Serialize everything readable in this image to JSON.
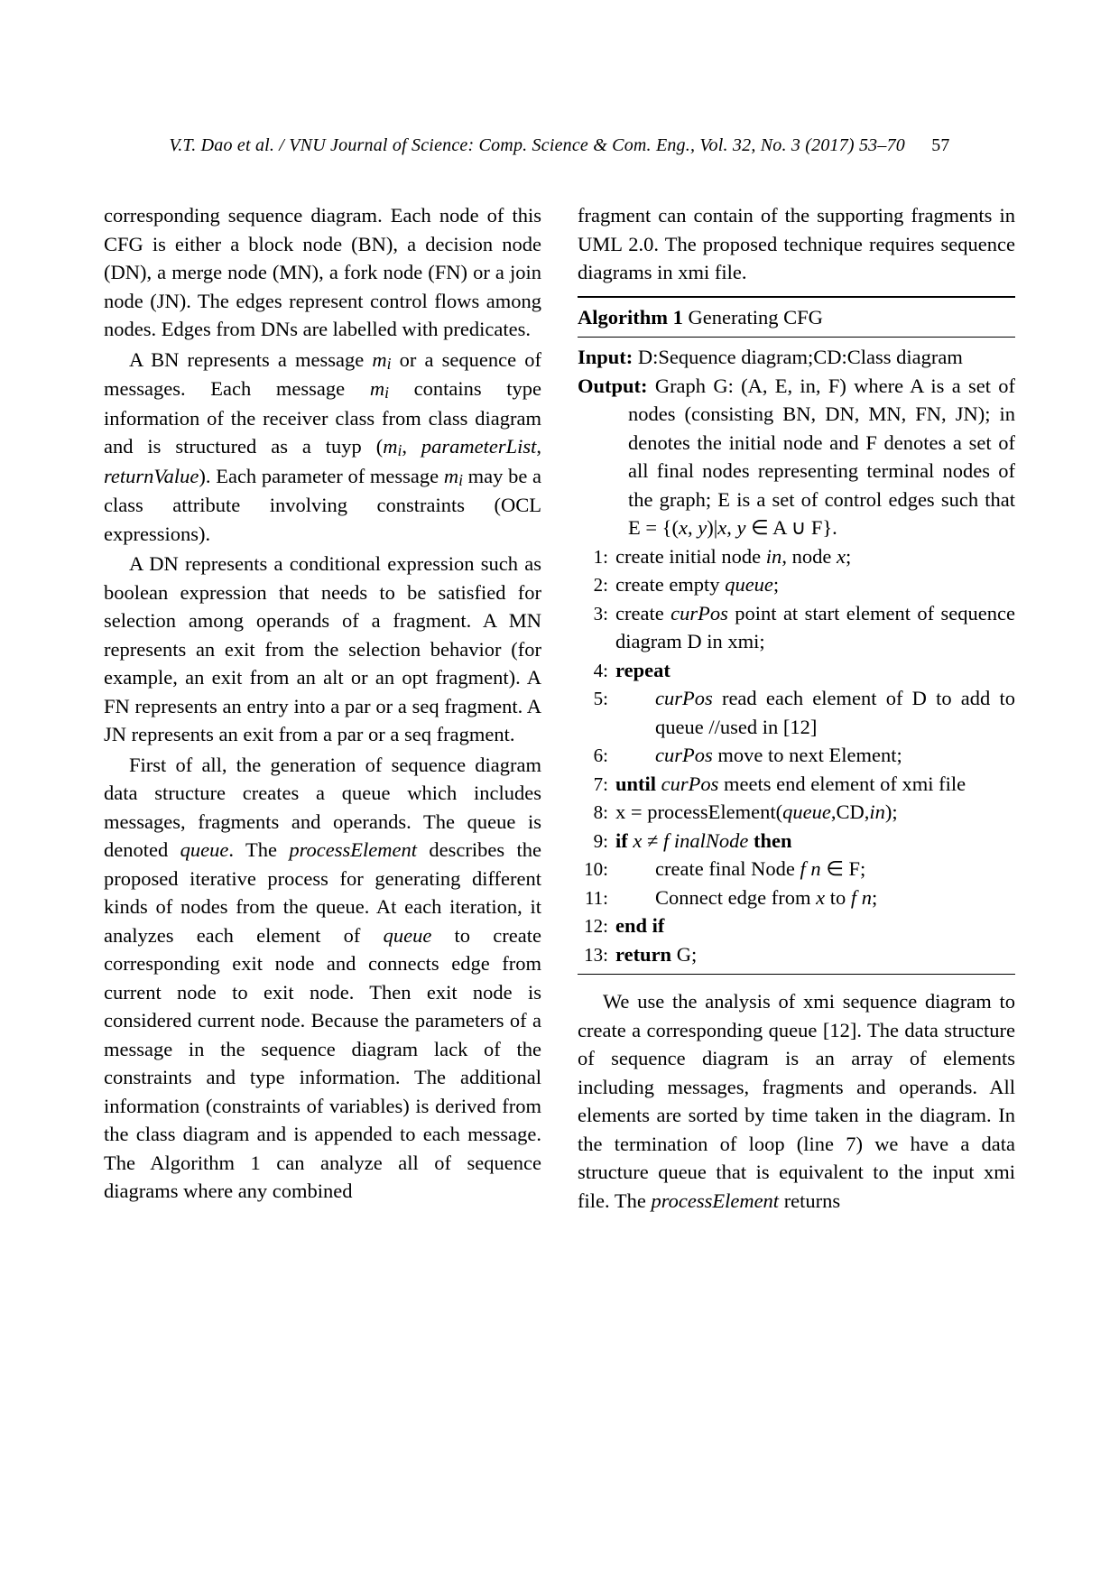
{
  "header": {
    "text": "V.T. Dao et al. / VNU Journal of Science: Comp. Science & Com. Eng., Vol. 32, No. 3 (2017) 53–70",
    "page_number": "57"
  },
  "left_column": {
    "p1": "corresponding sequence diagram. Each node of this CFG is either a block node (BN), a decision node (DN), a merge node (MN), a fork node (FN) or a join node (JN). The edges represent control flows among nodes. Edges from DNs are labelled with predicates.",
    "p2_a": "A BN represents a message ",
    "p2_b": " or a sequence of messages.  Each message ",
    "p2_c": " contains type information of the receiver class from class diagram and is structured as a tuyp (",
    "p2_d": ", ",
    "p2_e": ", ",
    "p2_f": "). Each parameter of message ",
    "p2_g": " may be a class attribute involving constraints (OCL expressions).",
    "p2_mi": "m",
    "p2_i": "i",
    "p2_paramlist": "parameterList",
    "p2_retval": "returnValue",
    "p3": "A DN represents a conditional expression such as boolean expression that needs to be satisfied for selection among operands of a fragment.  A MN represents an exit from the selection behavior (for example, an exit from an alt or an opt fragment).  A FN represents an entry into a par or a seq fragment. A JN represents an exit from a par or a seq fragment.",
    "p4_a": "First of all, the generation of sequence diagram data structure creates a queue which includes messages, fragments and operands.   The queue is denoted ",
    "p4_queue": "queue",
    "p4_b": ". The ",
    "p4_pe": "processElement",
    "p4_c": " describes the proposed iterative process for generating different kinds of nodes from the queue.  At each iteration, it analyzes each element of ",
    "p4_d": " to create corresponding exit node and connects edge from current node to exit node.  Then exit node is considered current node. Because the parameters of a message in the sequence diagram lack of the constraints and type information.   The additional information (constraints of variables) is derived from the class diagram and is appended to each message.  The Algorithm 1 can analyze all of sequence diagrams where any combined"
  },
  "right_column": {
    "p1": "fragment can contain of the supporting fragments in UML 2.0.   The proposed technique requires sequence diagrams in xmi file.",
    "algo": {
      "title_label": "Algorithm 1",
      "title_text": " Generating CFG",
      "input_label": "Input:",
      "input_text": " D:Sequence diagram;CD:Class diagram",
      "output_label": "Output:",
      "output_text_a": " Graph G: (A, E, in, F) where A is a set of nodes (consisting BN, DN, MN, FN, JN); in denotes the initial node and F denotes a set of all final nodes representing terminal nodes of the graph; E is a set of control edges such that E = {(",
      "output_text_b": ")|",
      "output_text_c": " ∈ A ∪ F}.",
      "xy_x": "x",
      "xy_y": "y",
      "lines": {
        "l1_num": "1:",
        "l1_a": "create initial node ",
        "l1_in": "in",
        "l1_b": ", node ",
        "l1_x": "x",
        "l1_c": ";",
        "l2_num": "2:",
        "l2_a": "create empty ",
        "l2_q": "queue",
        "l2_b": ";",
        "l3_num": "3:",
        "l3_a": "create ",
        "l3_cur": "curPos",
        "l3_b": " point at start element of sequence diagram D in xmi;",
        "l4_num": "4:",
        "l4_kw": "repeat",
        "l5_num": "5:",
        "l5_cur": "curPos",
        "l5_a": " read each element of D to add to queue //used in [12]",
        "l6_num": "6:",
        "l6_cur": "curPos",
        "l6_a": " move to next Element;",
        "l7_num": "7:",
        "l7_kw": "until ",
        "l7_cur": "curPos",
        "l7_a": " meets end element of xmi file",
        "l8_num": "8:",
        "l8_a": "x = processElement(",
        "l8_q": "queue",
        "l8_b": ",CD,",
        "l8_in": "in",
        "l8_c": ");",
        "l9_num": "9:",
        "l9_if": "if ",
        "l9_x": "x",
        "l9_ne": " ≠ ",
        "l9_fn": "f inalNode",
        "l9_then": " then",
        "l10_num": "10:",
        "l10_a": "create final Node ",
        "l10_fn": "f n",
        "l10_b": " ∈ F;",
        "l11_num": "11:",
        "l11_a": "Connect edge from ",
        "l11_x": "x",
        "l11_b": " to ",
        "l11_fn": "f n",
        "l11_c": ";",
        "l12_num": "12:",
        "l12_kw": "end if",
        "l13_num": "13:",
        "l13_kw": "return ",
        "l13_a": "G;"
      }
    },
    "p2_a": "We use the analysis of xmi sequence diagram to create a corresponding queue [12]. The data structure of sequence diagram is an array of elements including messages, fragments and operands.  All elements are sorted by time taken in the diagram.   In the termination of loop (line 7) we have a data structure queue that is equivalent to the input xmi file.  The ",
    "p2_pe": "processElement",
    "p2_b": " returns"
  }
}
